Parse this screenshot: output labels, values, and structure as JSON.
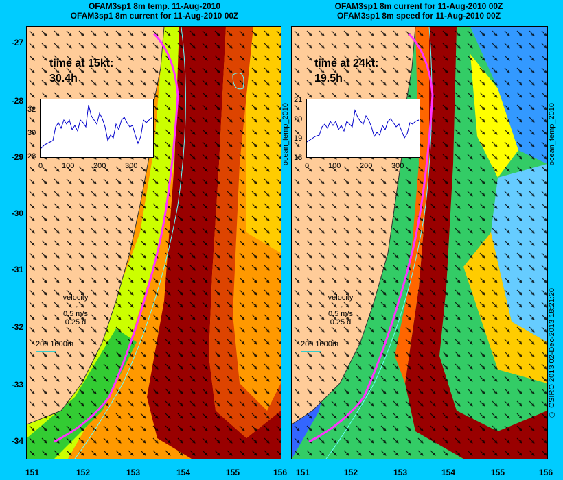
{
  "left_panel": {
    "title_line1": "OFAM3sp1 8m temp. 11-Aug-2010",
    "title_line2": "OFAM3sp1 8m current for 11-Aug-2010 00Z",
    "time_label": "time at 15kt:",
    "time_value": "30.4h",
    "inset_yticks": [
      "32",
      "30",
      "28"
    ],
    "inset_xticks": [
      "0",
      "100",
      "200",
      "300"
    ],
    "side_label": "ocean_temp_2010"
  },
  "right_panel": {
    "title_line1": "OFAM3sp1 8m current for 11-Aug-2010 00Z",
    "title_line2": "OFAM3sp1 8m speed for 11-Aug-2010 00Z",
    "time_label": "time at 24kt:",
    "time_value": "19.5h",
    "inset_yticks": [
      "21",
      "20",
      "19",
      "18"
    ],
    "inset_xticks": [
      "0",
      "100",
      "200",
      "300"
    ],
    "side_label": "ocean_temp_2010"
  },
  "velocity_legend": {
    "label": "velocity",
    "speed": "0.5 m/s",
    "duration": "0.25 d"
  },
  "depth_legend": "200  1000m",
  "y_axis": [
    "-27",
    "-28",
    "-29",
    "-30",
    "-31",
    "-32",
    "-33",
    "-34"
  ],
  "x_axis": [
    "151",
    "152",
    "153",
    "154",
    "155",
    "156"
  ],
  "credit": "© CSIRO 2013   02-Dec-2013 18:21:20",
  "colors": {
    "background": "#00ccff",
    "land": "#ffcc99",
    "track": "#ff33ff",
    "current_core": "#990000"
  }
}
